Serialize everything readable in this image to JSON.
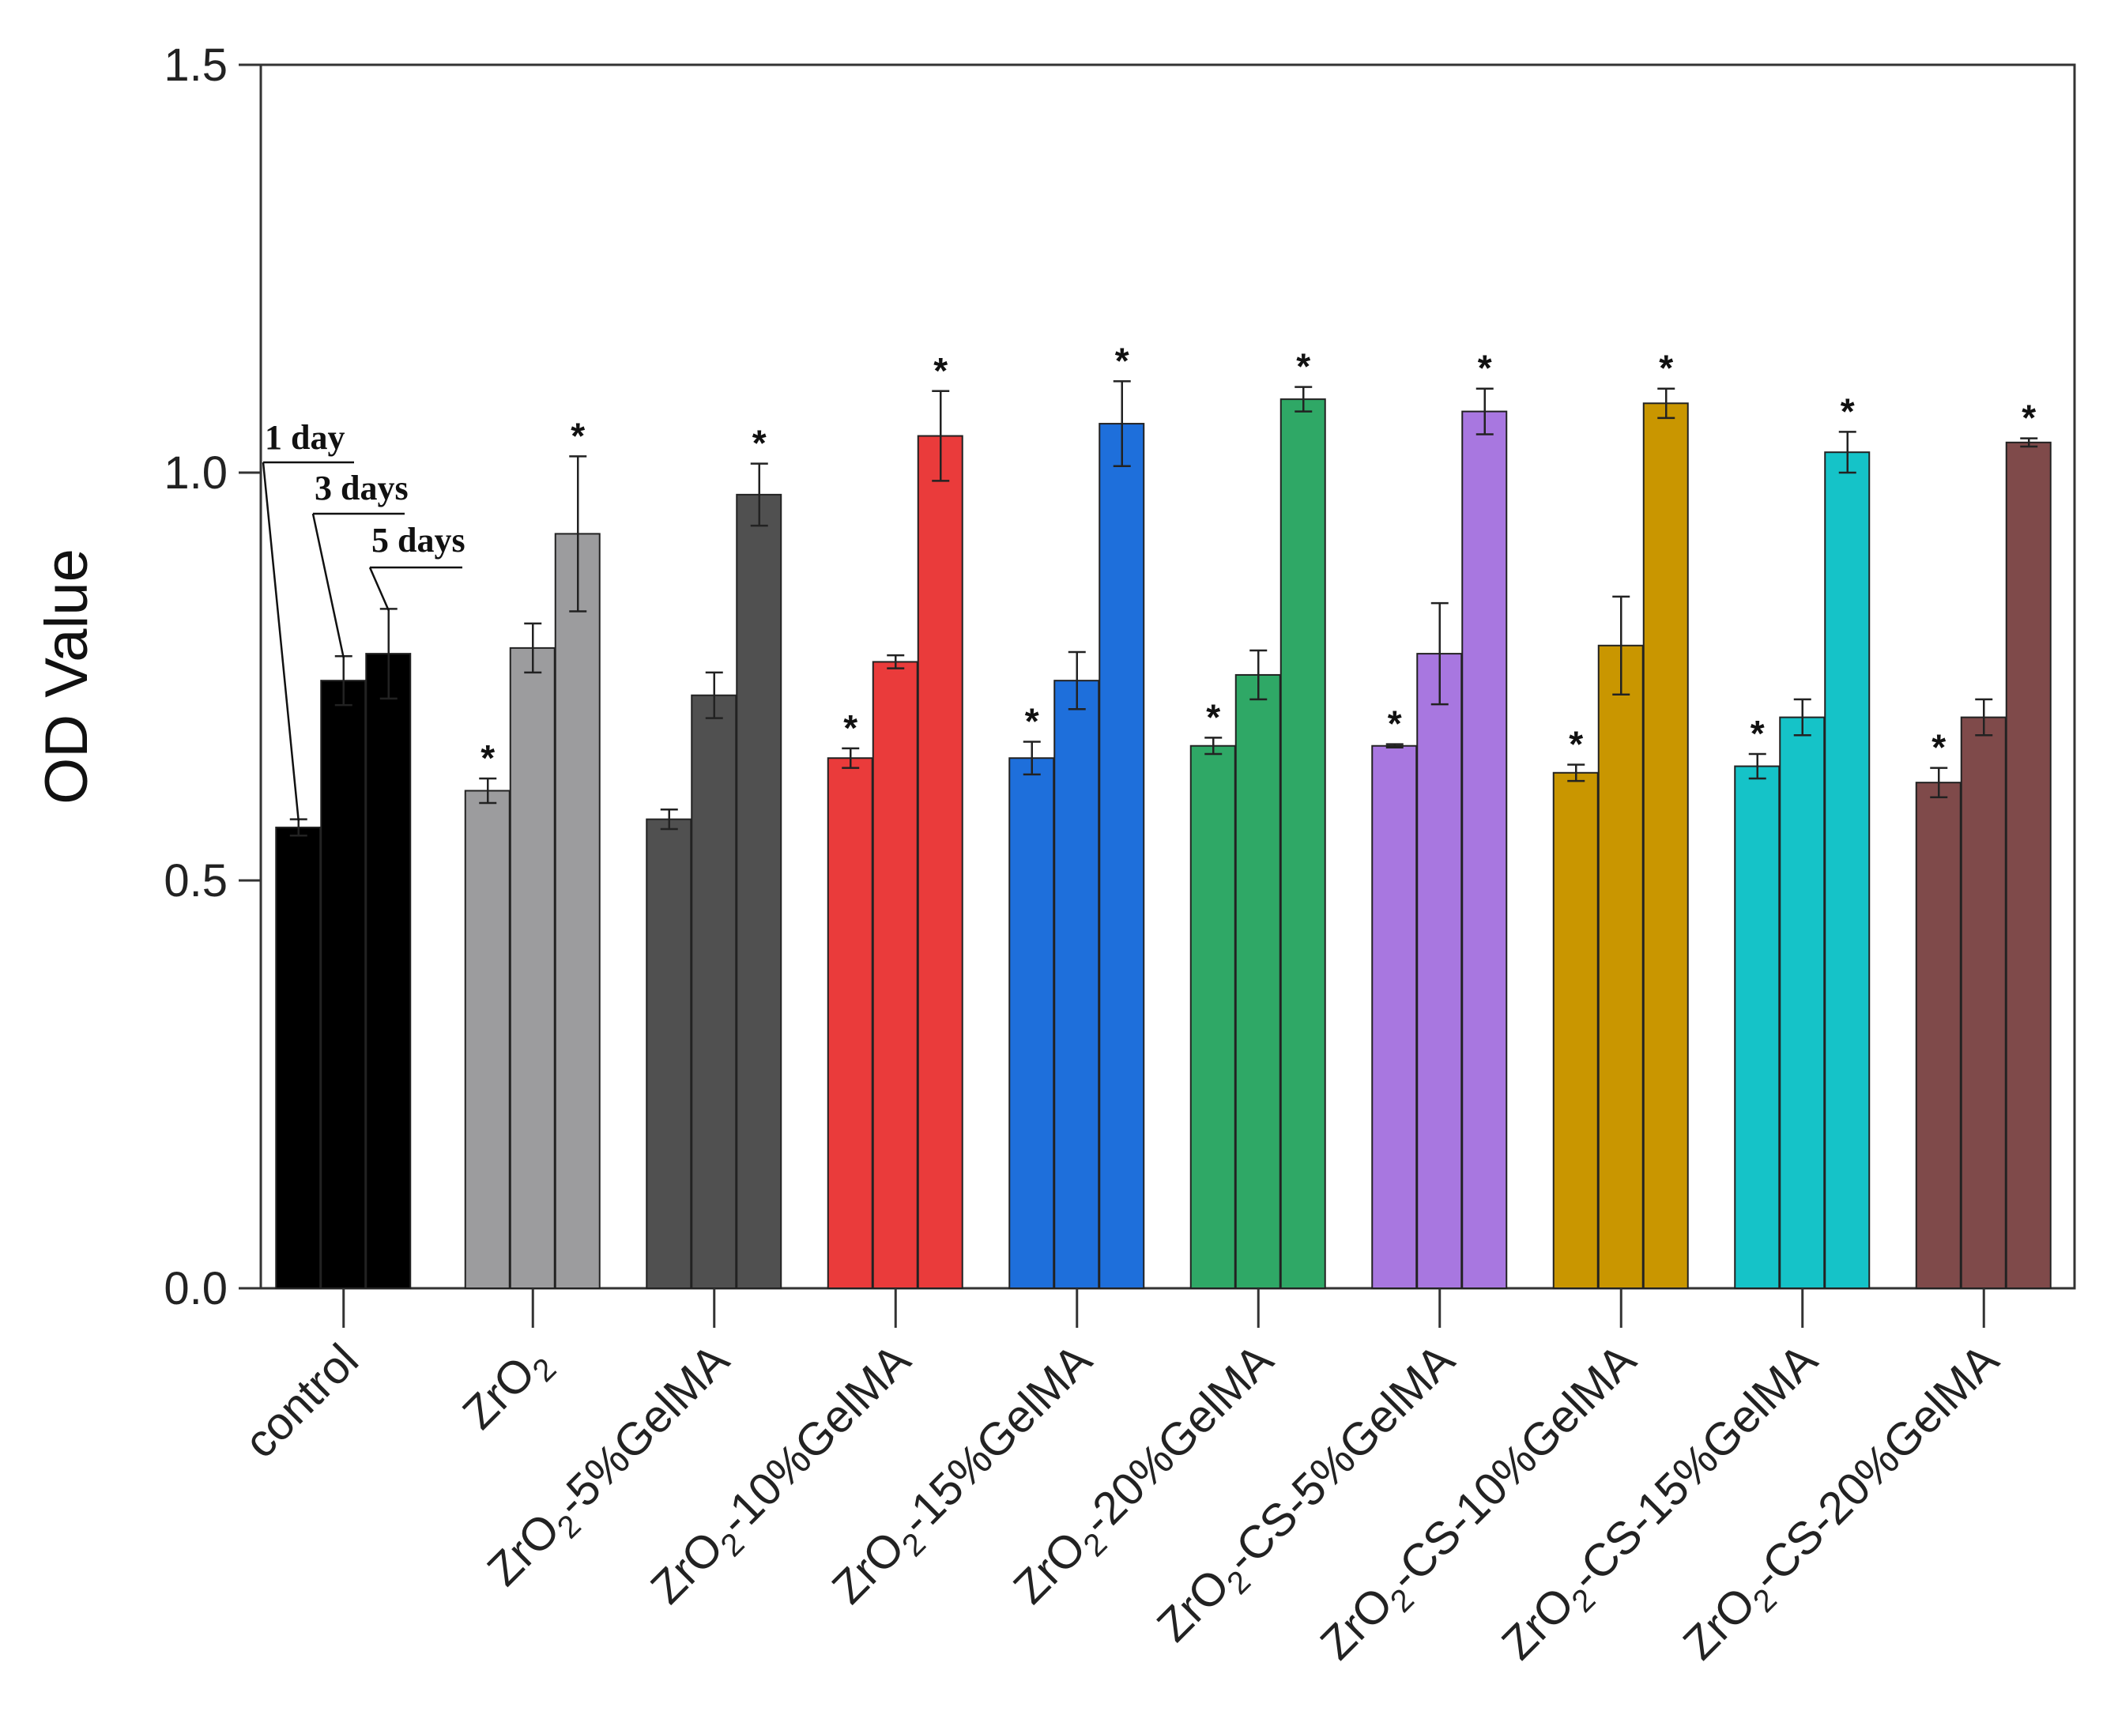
{
  "chart_data": {
    "type": "bar",
    "ylabel": "OD Value",
    "ylim": [
      0,
      1.5
    ],
    "yticks": [
      "0.0",
      "0.5",
      "1.0",
      "1.5"
    ],
    "grid": false,
    "categories": [
      {
        "label": "control",
        "base": "control",
        "suffix": ""
      },
      {
        "label": "ZrO2",
        "base": "ZrO",
        "suffix": ""
      },
      {
        "label": "ZrO2-5%GelMA",
        "base": "ZrO",
        "suffix": "-5%GelMA"
      },
      {
        "label": "ZrO2-10%GelMA",
        "base": "ZrO",
        "suffix": "-10%GelMA"
      },
      {
        "label": "ZrO2-15%GelMA",
        "base": "ZrO",
        "suffix": "-15%GelMA"
      },
      {
        "label": "ZrO2-20%GelMA",
        "base": "ZrO",
        "suffix": "-20%GelMA"
      },
      {
        "label": "ZrO2-CS-5%GelMA",
        "base": "ZrO",
        "suffix": "-CS-5%GelMA"
      },
      {
        "label": "ZrO2-CS-10%GelMA",
        "base": "ZrO",
        "suffix": "-CS-10%GelMA"
      },
      {
        "label": "ZrO2-CS-15%GelMA",
        "base": "ZrO",
        "suffix": "-CS-15%GelMA"
      },
      {
        "label": "ZrO2-CS-20%GelMA",
        "base": "ZrO",
        "suffix": "-CS-20%GelMA"
      }
    ],
    "subscript": "2",
    "series": [
      {
        "name": "1 day",
        "values": [
          0.565,
          0.61,
          0.575,
          0.65,
          0.65,
          0.665,
          0.665,
          0.632,
          0.64,
          0.62
        ],
        "errors": [
          0.01,
          0.015,
          0.012,
          0.012,
          0.02,
          0.01,
          0.002,
          0.01,
          0.015,
          0.018
        ]
      },
      {
        "name": "3 days",
        "values": [
          0.745,
          0.785,
          0.727,
          0.768,
          0.745,
          0.752,
          0.778,
          0.788,
          0.7,
          0.7
        ],
        "errors": [
          0.03,
          0.03,
          0.028,
          0.008,
          0.035,
          0.03,
          0.062,
          0.06,
          0.022,
          0.022
        ]
      },
      {
        "name": "5 days",
        "values": [
          0.778,
          0.925,
          0.973,
          1.045,
          1.06,
          1.09,
          1.075,
          1.085,
          1.025,
          1.037
        ],
        "errors": [
          0.055,
          0.095,
          0.038,
          0.055,
          0.052,
          0.015,
          0.028,
          0.018,
          0.025,
          0.005
        ]
      }
    ],
    "colors": [
      "#000000",
      "#9c9c9e",
      "#505050",
      "#ea3b3b",
      "#1e6fdb",
      "#2fa866",
      "#a877e0",
      "#c99600",
      "#15c3c8",
      "#7f4a4a"
    ],
    "significance": {
      "marker": "*",
      "flags": [
        [
          false,
          false,
          false
        ],
        [
          true,
          false,
          true
        ],
        [
          false,
          false,
          true
        ],
        [
          true,
          false,
          true
        ],
        [
          true,
          false,
          true
        ],
        [
          true,
          false,
          true
        ],
        [
          true,
          false,
          true
        ],
        [
          true,
          false,
          true
        ],
        [
          true,
          false,
          true
        ],
        [
          true,
          false,
          true
        ]
      ]
    },
    "legend": {
      "placement": "on first bar group, upper-left",
      "labels": [
        "1 day",
        "3 days",
        "5 days"
      ]
    }
  }
}
